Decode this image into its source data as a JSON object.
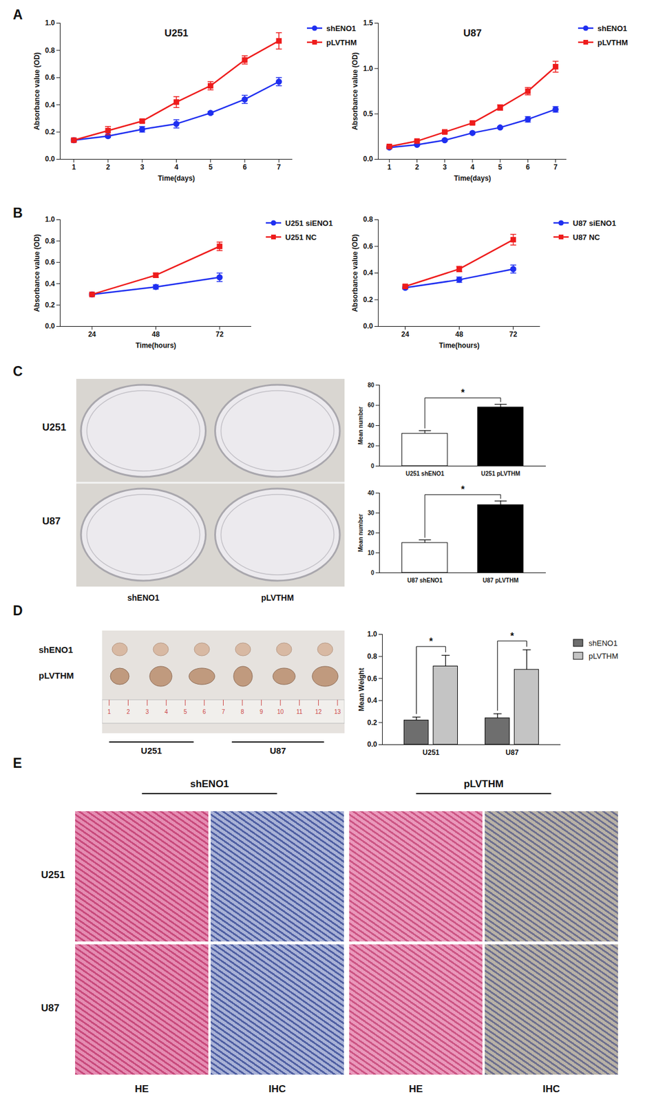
{
  "chart_data": [
    {
      "type": "line",
      "title": "U251",
      "x": [
        1,
        2,
        3,
        4,
        5,
        6,
        7
      ],
      "xlabel": "Time(days)",
      "ylabel": "Absorbance value (OD)",
      "xlim": [
        0.6,
        7.4
      ],
      "xticks": [
        1,
        2,
        3,
        4,
        5,
        6,
        7
      ],
      "ylim": [
        0,
        1
      ],
      "yticks": [
        {
          "value": 0,
          "label": "0.0"
        },
        {
          "value": 0.2,
          "label": "0.2"
        },
        {
          "value": 0.4,
          "label": "0.4"
        },
        {
          "value": 0.6,
          "label": "0.6"
        },
        {
          "value": 0.8,
          "label": "0.8"
        },
        {
          "value": 1,
          "label": "1.0"
        }
      ],
      "series": [
        {
          "name": "shENO1",
          "color": "#1f2ff0",
          "marker": "circle",
          "values": [
            0.14,
            0.17,
            0.22,
            0.26,
            0.34,
            0.44,
            0.57
          ],
          "error": [
            0.01,
            0.01,
            0.02,
            0.03,
            0.01,
            0.03,
            0.03
          ]
        },
        {
          "name": "pLVTHM",
          "color": "#ee1c1c",
          "marker": "square",
          "values": [
            0.14,
            0.21,
            0.28,
            0.42,
            0.54,
            0.73,
            0.87
          ],
          "error": [
            0.01,
            0.03,
            0.01,
            0.04,
            0.03,
            0.03,
            0.06
          ]
        }
      ]
    },
    {
      "type": "line",
      "title": "U87",
      "x": [
        1,
        2,
        3,
        4,
        5,
        6,
        7
      ],
      "xlabel": "Time(days)",
      "ylabel": "Absorbance value (OD)",
      "xlim": [
        0.6,
        7.4
      ],
      "xticks": [
        1,
        2,
        3,
        4,
        5,
        6,
        7
      ],
      "ylim": [
        0,
        1.5
      ],
      "yticks": [
        {
          "value": 0,
          "label": "0.0"
        },
        {
          "value": 0.5,
          "label": "0.5"
        },
        {
          "value": 1,
          "label": "1.0"
        },
        {
          "value": 1.5,
          "label": "1.5"
        }
      ],
      "series": [
        {
          "name": "shENO1",
          "color": "#1f2ff0",
          "marker": "circle",
          "values": [
            0.13,
            0.16,
            0.21,
            0.29,
            0.35,
            0.44,
            0.55
          ],
          "error": [
            0.01,
            0.01,
            0.01,
            0.01,
            0.01,
            0.03,
            0.03
          ]
        },
        {
          "name": "pLVTHM",
          "color": "#ee1c1c",
          "marker": "square",
          "values": [
            0.14,
            0.2,
            0.3,
            0.4,
            0.57,
            0.75,
            1.02
          ],
          "error": [
            0.01,
            0.01,
            0.01,
            0.01,
            0.03,
            0.04,
            0.06
          ]
        }
      ]
    },
    {
      "type": "line",
      "x": [
        24,
        48,
        72
      ],
      "xlabel": "Time(hours)",
      "ylabel": "Absorbance value (OD)",
      "xlim": [
        12,
        84
      ],
      "xticks": [
        24,
        48,
        72
      ],
      "ylim": [
        0,
        1
      ],
      "yticks": [
        {
          "value": 0,
          "label": "0.0"
        },
        {
          "value": 0.2,
          "label": "0.2"
        },
        {
          "value": 0.4,
          "label": "0.4"
        },
        {
          "value": 0.6,
          "label": "0.6"
        },
        {
          "value": 0.8,
          "label": "0.8"
        },
        {
          "value": 1,
          "label": "1.0"
        }
      ],
      "series": [
        {
          "name": "U251 siENO1",
          "color": "#1f2ff0",
          "marker": "circle",
          "values": [
            0.3,
            0.37,
            0.46
          ],
          "error": [
            0.01,
            0.02,
            0.04
          ]
        },
        {
          "name": "U251 NC",
          "color": "#ee1c1c",
          "marker": "square",
          "values": [
            0.3,
            0.48,
            0.75
          ],
          "error": [
            0.01,
            0.02,
            0.04
          ]
        }
      ]
    },
    {
      "type": "line",
      "x": [
        24,
        48,
        72
      ],
      "xlabel": "Time(hours)",
      "ylabel": "Absorbance value (OD)",
      "xlim": [
        12,
        84
      ],
      "xticks": [
        24,
        48,
        72
      ],
      "ylim": [
        0,
        0.8
      ],
      "yticks": [
        {
          "value": 0,
          "label": "0.0"
        },
        {
          "value": 0.2,
          "label": "0.2"
        },
        {
          "value": 0.4,
          "label": "0.4"
        },
        {
          "value": 0.6,
          "label": "0.6"
        },
        {
          "value": 0.8,
          "label": "0.8"
        }
      ],
      "series": [
        {
          "name": "U87 siENO1",
          "color": "#1f2ff0",
          "marker": "circle",
          "values": [
            0.29,
            0.35,
            0.43
          ],
          "error": [
            0.01,
            0.02,
            0.03
          ]
        },
        {
          "name": "U87 NC",
          "color": "#ee1c1c",
          "marker": "square",
          "values": [
            0.3,
            0.43,
            0.65
          ],
          "error": [
            0.01,
            0.02,
            0.04
          ]
        }
      ]
    },
    {
      "type": "bar",
      "categories": [
        "U251 shENO1",
        "U251 pLVTHM"
      ],
      "values": [
        32,
        58
      ],
      "error": [
        3,
        3
      ],
      "colors": [
        "#ffffff",
        "#000000"
      ],
      "ylabel": "Mean number",
      "ylim": [
        0,
        80
      ],
      "yticks": [
        0,
        20,
        40,
        60,
        80
      ],
      "annotations": [
        "*"
      ]
    },
    {
      "type": "bar",
      "categories": [
        "U87 shENO1",
        "U87 pLVTHM"
      ],
      "values": [
        15,
        34
      ],
      "error": [
        1.5,
        2
      ],
      "colors": [
        "#ffffff",
        "#000000"
      ],
      "ylabel": "Mean number",
      "ylim": [
        0,
        40
      ],
      "yticks": [
        0,
        10,
        20,
        30,
        40
      ],
      "annotations": [
        "*"
      ]
    },
    {
      "type": "bar",
      "categories": [
        "U251",
        "U87"
      ],
      "ylabel": "Mean Weight",
      "ylim": [
        0,
        1
      ],
      "yticks": [
        {
          "value": 0,
          "label": "0.0"
        },
        {
          "value": 0.2,
          "label": "0.2"
        },
        {
          "value": 0.4,
          "label": "0.4"
        },
        {
          "value": 0.6,
          "label": "0.6"
        },
        {
          "value": 0.8,
          "label": "0.8"
        },
        {
          "value": 1,
          "label": "1.0"
        }
      ],
      "series": [
        {
          "name": "shENO1",
          "color": "#6e6e6e",
          "values": [
            0.22,
            0.24
          ],
          "error": [
            0.03,
            0.04
          ]
        },
        {
          "name": "pLVTHM",
          "color": "#c4c4c4",
          "values": [
            0.71,
            0.68
          ],
          "error": [
            0.1,
            0.18
          ]
        }
      ],
      "annotations": [
        "*",
        "*"
      ]
    }
  ],
  "figure": {
    "panels": [
      "A",
      "B",
      "C",
      "D",
      "E"
    ],
    "colony_photo": {
      "rows": [
        "U251",
        "U87"
      ],
      "columns": [
        "shENO1",
        "pLVTHM"
      ]
    },
    "tumor_photo": {
      "rows": [
        "shENO1",
        "pLVTHM"
      ],
      "groups": [
        "U251",
        "U87"
      ],
      "ruler": [
        1,
        2,
        3,
        4,
        5,
        6,
        7,
        8,
        9,
        10,
        11,
        12,
        13
      ]
    },
    "histology": {
      "groups": [
        "shENO1",
        "pLVTHM"
      ],
      "rows": [
        "U251",
        "U87"
      ],
      "columns": [
        "HE",
        "IHC",
        "HE",
        "IHC"
      ]
    }
  }
}
